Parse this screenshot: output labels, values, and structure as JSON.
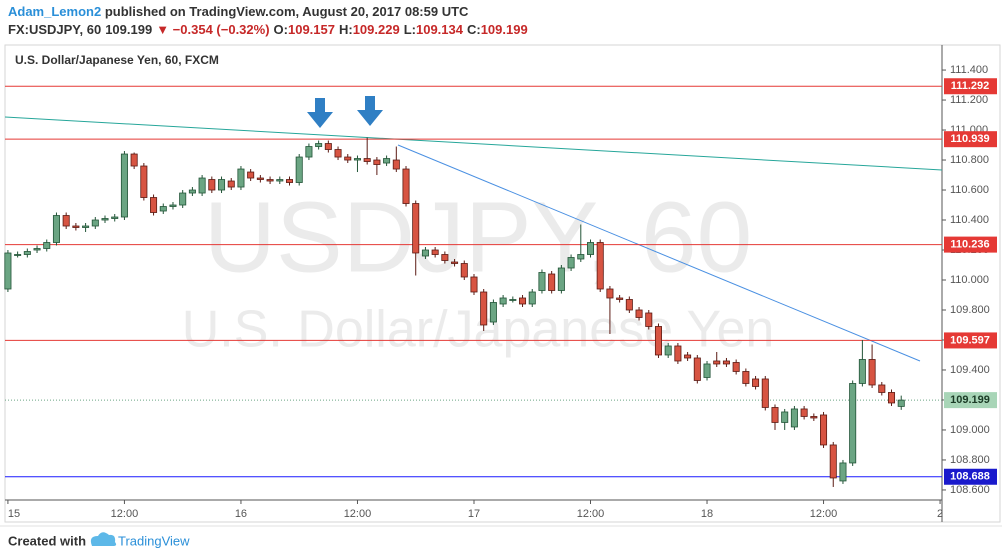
{
  "header": {
    "author": "Adam_Lemon2",
    "published": " published on TradingView.com, August 20, 2017 08:59 UTC",
    "quote": [
      {
        "text": "FX:USDJPY, 60",
        "color": "#333333"
      },
      {
        "text": "109.199",
        "color": "#333333"
      },
      {
        "text": "▼ −0.354 (−0.32%)",
        "color": "#c62828"
      },
      {
        "text": "O:",
        "color": "#333333"
      },
      {
        "text": "109.157",
        "color": "#c62828"
      },
      {
        "text": "H:",
        "color": "#333333"
      },
      {
        "text": "109.229",
        "color": "#c62828"
      },
      {
        "text": "L:",
        "color": "#333333"
      },
      {
        "text": "109.134",
        "color": "#c62828"
      },
      {
        "text": "C:",
        "color": "#333333"
      },
      {
        "text": "109.199",
        "color": "#c62828"
      }
    ]
  },
  "chart_data": {
    "type": "candlestick",
    "legend": "U.S. Dollar/Japanese Yen, 60, FXCM",
    "watermark": [
      "USDJPY, 60",
      "U.S. Dollar/Japanese Yen"
    ],
    "up_color": "#6ba583",
    "down_color": "#d75442",
    "xlim": [
      -0.3,
      96.2
    ],
    "xticks": [
      {
        "value": 0,
        "label": "15"
      },
      {
        "value": 12,
        "label": "12:00"
      },
      {
        "value": 24,
        "label": "16"
      },
      {
        "value": 36,
        "label": "12:00"
      },
      {
        "value": 48,
        "label": "17"
      },
      {
        "value": 60,
        "label": "12:00"
      },
      {
        "value": 72,
        "label": "18"
      },
      {
        "value": 84,
        "label": "12:00"
      },
      {
        "value": 96,
        "label": "2"
      }
    ],
    "ylim": [
      108.533,
      111.567
    ],
    "yticks": [
      {
        "value": 108.6,
        "label": "108.600"
      },
      {
        "value": 108.8,
        "label": "108.800"
      },
      {
        "value": 109.0,
        "label": "109.000"
      },
      {
        "value": 109.2,
        "label": "109.200"
      },
      {
        "value": 109.4,
        "label": "109.400"
      },
      {
        "value": 109.6,
        "label": "109.600"
      },
      {
        "value": 109.8,
        "label": "109.800"
      },
      {
        "value": 110.0,
        "label": "110.000"
      },
      {
        "value": 110.2,
        "label": "110.200"
      },
      {
        "value": 110.4,
        "label": "110.400"
      },
      {
        "value": 110.6,
        "label": "110.600"
      },
      {
        "value": 110.8,
        "label": "110.800"
      },
      {
        "value": 111.0,
        "label": "111.000"
      },
      {
        "value": 111.2,
        "label": "111.200"
      },
      {
        "value": 111.4,
        "label": "111.400"
      }
    ],
    "levels": [
      {
        "value": 111.292,
        "color": "#e53935",
        "label_color": "#e53935"
      },
      {
        "value": 110.939,
        "color": "#e53935",
        "label_color": "#e53935"
      },
      {
        "value": 110.236,
        "color": "#e53935",
        "label_color": "#e53935"
      },
      {
        "value": 109.597,
        "color": "#e53935",
        "label_color": "#e53935"
      },
      {
        "value": 108.688,
        "color": "#1a1aff",
        "label_color": "#1a1acc"
      },
      {
        "value": 109.199,
        "color": "#6ba583",
        "label_color": "#a8d5b7",
        "dotted": true
      }
    ],
    "x": [
      0,
      1,
      2,
      3,
      4,
      5,
      6,
      7,
      8,
      9,
      10,
      11,
      12,
      13,
      14,
      15,
      16,
      17,
      18,
      19,
      20,
      21,
      22,
      23,
      24,
      25,
      26,
      27,
      28,
      29,
      30,
      31,
      32,
      33,
      34,
      35,
      36,
      37,
      38,
      39,
      40,
      41,
      42,
      43,
      44,
      45,
      46,
      47,
      48,
      49,
      50,
      51,
      52,
      53,
      54,
      55,
      56,
      57,
      58,
      59,
      60,
      61,
      62,
      63,
      64,
      65,
      66,
      67,
      68,
      69,
      70,
      71,
      72,
      73,
      74,
      75,
      76,
      77,
      78,
      79,
      80,
      81,
      82,
      83,
      84,
      85,
      86,
      87,
      88,
      89,
      90,
      91,
      92
    ],
    "open": [
      109.94,
      110.17,
      110.17,
      110.2,
      110.21,
      110.25,
      110.43,
      110.36,
      110.35,
      110.36,
      110.4,
      110.41,
      110.42,
      110.84,
      110.76,
      110.55,
      110.46,
      110.49,
      110.5,
      110.58,
      110.58,
      110.67,
      110.6,
      110.66,
      110.62,
      110.72,
      110.68,
      110.67,
      110.66,
      110.67,
      110.65,
      110.82,
      110.89,
      110.91,
      110.87,
      110.82,
      110.8,
      110.81,
      110.8,
      110.78,
      110.8,
      110.74,
      110.51,
      110.16,
      110.2,
      110.17,
      110.12,
      110.11,
      110.02,
      109.92,
      109.72,
      109.84,
      109.87,
      109.88,
      109.84,
      109.93,
      110.04,
      109.93,
      110.08,
      110.14,
      110.17,
      110.25,
      109.94,
      109.88,
      109.87,
      109.8,
      109.78,
      109.69,
      109.5,
      109.56,
      109.5,
      109.48,
      109.35,
      109.46,
      109.46,
      109.45,
      109.39,
      109.34,
      109.34,
      109.15,
      109.05,
      109.02,
      109.14,
      109.09,
      109.1,
      108.9,
      108.66,
      108.78,
      109.31,
      109.47,
      109.3,
      109.25,
      109.157
    ],
    "high": [
      110.2,
      110.19,
      110.21,
      110.23,
      110.27,
      110.45,
      110.45,
      110.38,
      110.38,
      110.42,
      110.43,
      110.44,
      110.86,
      110.85,
      110.78,
      110.57,
      110.51,
      110.52,
      110.6,
      110.62,
      110.7,
      110.69,
      110.69,
      110.68,
      110.76,
      110.74,
      110.7,
      110.69,
      110.69,
      110.69,
      110.84,
      110.91,
      110.93,
      110.93,
      110.89,
      110.84,
      110.83,
      110.95,
      110.82,
      110.83,
      110.89,
      110.76,
      110.53,
      110.22,
      110.22,
      110.19,
      110.14,
      110.13,
      110.04,
      109.94,
      109.87,
      109.9,
      109.89,
      109.9,
      109.94,
      110.07,
      110.06,
      110.1,
      110.17,
      110.37,
      110.27,
      110.27,
      109.96,
      109.9,
      109.89,
      109.82,
      109.8,
      109.71,
      109.58,
      109.58,
      109.52,
      109.5,
      109.46,
      109.52,
      109.48,
      109.47,
      109.41,
      109.36,
      109.36,
      109.17,
      109.14,
      109.16,
      109.16,
      109.11,
      109.12,
      108.92,
      108.8,
      109.33,
      109.6,
      109.57,
      109.32,
      109.27,
      109.229
    ],
    "low": [
      109.92,
      110.15,
      110.15,
      110.18,
      110.19,
      110.23,
      110.34,
      110.33,
      110.32,
      110.34,
      110.38,
      110.39,
      110.4,
      110.74,
      110.53,
      110.43,
      110.44,
      110.47,
      110.48,
      110.56,
      110.56,
      110.58,
      110.58,
      110.6,
      110.6,
      110.66,
      110.65,
      110.64,
      110.64,
      110.63,
      110.63,
      110.8,
      110.87,
      110.85,
      110.8,
      110.78,
      110.72,
      110.77,
      110.7,
      110.76,
      110.72,
      110.49,
      110.03,
      110.14,
      110.15,
      110.11,
      110.09,
      110,
      109.9,
      109.66,
      109.7,
      109.82,
      109.85,
      109.82,
      109.82,
      109.91,
      109.91,
      109.91,
      110.06,
      110.12,
      110.15,
      109.92,
      109.64,
      109.85,
      109.78,
      109.73,
      109.67,
      109.48,
      109.48,
      109.44,
      109.46,
      109.31,
      109.33,
      109.42,
      109.42,
      109.37,
      109.29,
      109.27,
      109.13,
      109.0,
      109.0,
      109.0,
      109.07,
      109.06,
      108.88,
      108.62,
      108.64,
      108.76,
      109.29,
      109.28,
      109.23,
      109.16,
      109.134
    ],
    "close": [
      110.18,
      110.17,
      110.19,
      110.21,
      110.25,
      110.43,
      110.36,
      110.35,
      110.36,
      110.4,
      110.41,
      110.42,
      110.84,
      110.76,
      110.55,
      110.45,
      110.49,
      110.5,
      110.58,
      110.6,
      110.68,
      110.6,
      110.67,
      110.62,
      110.74,
      110.68,
      110.67,
      110.66,
      110.67,
      110.65,
      110.82,
      110.89,
      110.91,
      110.87,
      110.82,
      110.8,
      110.81,
      110.79,
      110.77,
      110.81,
      110.74,
      110.51,
      110.18,
      110.2,
      110.17,
      110.13,
      110.11,
      110.02,
      109.92,
      109.7,
      109.85,
      109.88,
      109.87,
      109.84,
      109.92,
      110.05,
      109.93,
      110.08,
      110.15,
      110.17,
      110.25,
      109.94,
      109.88,
      109.87,
      109.8,
      109.75,
      109.69,
      109.5,
      109.56,
      109.46,
      109.48,
      109.33,
      109.44,
      109.44,
      109.44,
      109.39,
      109.31,
      109.29,
      109.15,
      109.05,
      109.12,
      109.14,
      109.09,
      109.08,
      108.9,
      108.68,
      108.78,
      109.31,
      109.47,
      109.3,
      109.25,
      109.18,
      109.199
    ]
  },
  "footer": {
    "created": "Created with",
    "brand": "TradingView"
  }
}
